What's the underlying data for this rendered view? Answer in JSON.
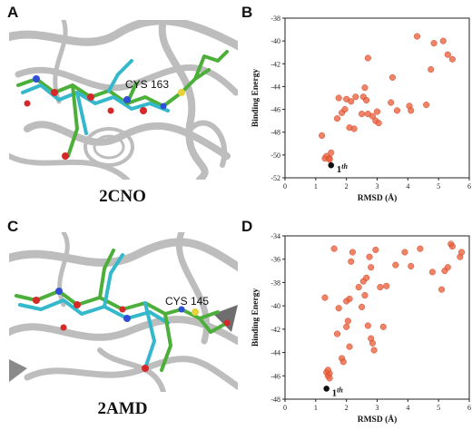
{
  "panels": {
    "a": {
      "letter": "A",
      "caption": "2CNO",
      "residue_label": "CYS 163"
    },
    "b": {
      "letter": "B"
    },
    "c": {
      "letter": "C",
      "caption": "2AMD",
      "residue_label": "CYS 145"
    },
    "d": {
      "letter": "D"
    }
  },
  "colors": {
    "point": "#e8603c",
    "best_point": "#111111",
    "ribbon": "#c8c8c8",
    "ligand_green": "#4caf3a",
    "ligand_cyan": "#35b8cc",
    "oxygen": "#d62828",
    "nitrogen": "#2f4fd6",
    "sulfur": "#e6d23a"
  },
  "chart_data": [
    {
      "type": "scatter",
      "panel": "B",
      "xlabel": "RMSD (Å)",
      "ylabel": "Binding Energy",
      "xlim": [
        0,
        6
      ],
      "ylim": [
        -52,
        -38
      ],
      "xticks": [
        "0",
        "1",
        "2",
        "3",
        "4",
        "5",
        "6"
      ],
      "yticks": [
        "-52",
        "-50",
        "-48",
        "-46",
        "-44",
        "-42",
        "-40",
        "-38"
      ],
      "annotation": {
        "label": "1",
        "sup": "th"
      },
      "best": {
        "x": 1.5,
        "y": -50.9
      },
      "points": [
        [
          1.2,
          -48.3
        ],
        [
          1.3,
          -50.3
        ],
        [
          1.35,
          -50.1
        ],
        [
          1.45,
          -50.3
        ],
        [
          1.5,
          -49.8
        ],
        [
          1.45,
          -50.4
        ],
        [
          1.7,
          -46.8
        ],
        [
          1.75,
          -45.0
        ],
        [
          1.85,
          -46.3
        ],
        [
          1.95,
          -46.0
        ],
        [
          2.0,
          -45.1
        ],
        [
          2.1,
          -47.6
        ],
        [
          2.15,
          -45.3
        ],
        [
          2.25,
          -47.7
        ],
        [
          2.3,
          -44.9
        ],
        [
          2.5,
          -46.4
        ],
        [
          2.55,
          -44.9
        ],
        [
          2.6,
          -44.1
        ],
        [
          2.65,
          -45.2
        ],
        [
          2.7,
          -46.4
        ],
        [
          2.7,
          -41.5
        ],
        [
          2.85,
          -46.6
        ],
        [
          2.95,
          -47.0
        ],
        [
          3.0,
          -46.2
        ],
        [
          3.05,
          -47.2
        ],
        [
          3.45,
          -45.4
        ],
        [
          3.5,
          -43.2
        ],
        [
          3.65,
          -46.1
        ],
        [
          4.05,
          -45.7
        ],
        [
          4.1,
          -46.1
        ],
        [
          4.3,
          -39.6
        ],
        [
          4.6,
          -45.6
        ],
        [
          4.75,
          -42.5
        ],
        [
          4.85,
          -40.2
        ],
        [
          5.15,
          -40.0
        ],
        [
          5.3,
          -41.2
        ],
        [
          5.45,
          -41.6
        ]
      ]
    },
    {
      "type": "scatter",
      "panel": "D",
      "xlabel": "RMSD (Å)",
      "ylabel": "Binding Energy",
      "xlim": [
        0,
        6
      ],
      "ylim": [
        -48,
        -34
      ],
      "xticks": [
        "0",
        "1",
        "2",
        "3",
        "4",
        "5",
        "6"
      ],
      "yticks": [
        "-48",
        "-46",
        "-44",
        "-42",
        "-40",
        "-38",
        "-36",
        "-34"
      ],
      "annotation": {
        "label": "1",
        "sup": "th"
      },
      "best": {
        "x": 1.35,
        "y": -47.1
      },
      "points": [
        [
          1.3,
          -39.3
        ],
        [
          1.35,
          -45.7
        ],
        [
          1.4,
          -46.0
        ],
        [
          1.45,
          -45.8
        ],
        [
          1.45,
          -46.2
        ],
        [
          1.4,
          -45.5
        ],
        [
          1.6,
          -35.1
        ],
        [
          1.7,
          -42.4
        ],
        [
          1.75,
          -40.2
        ],
        [
          1.85,
          -44.5
        ],
        [
          1.9,
          -44.8
        ],
        [
          2.0,
          -39.6
        ],
        [
          2.0,
          -41.8
        ],
        [
          2.05,
          -41.3
        ],
        [
          2.1,
          -39.4
        ],
        [
          2.15,
          -36.2
        ],
        [
          2.1,
          -43.5
        ],
        [
          2.2,
          -35.4
        ],
        [
          2.4,
          -38.4
        ],
        [
          2.5,
          -40.1
        ],
        [
          2.55,
          -37.9
        ],
        [
          2.6,
          -39.1
        ],
        [
          2.65,
          -37.6
        ],
        [
          2.7,
          -41.7
        ],
        [
          2.75,
          -35.8
        ],
        [
          2.8,
          -36.7
        ],
        [
          2.8,
          -42.8
        ],
        [
          2.85,
          -43.2
        ],
        [
          2.9,
          -43.8
        ],
        [
          2.95,
          -35.2
        ],
        [
          3.1,
          -38.4
        ],
        [
          3.2,
          -41.8
        ],
        [
          3.3,
          -38.3
        ],
        [
          3.6,
          -36.5
        ],
        [
          3.9,
          -35.4
        ],
        [
          4.1,
          -36.6
        ],
        [
          4.4,
          -35.1
        ],
        [
          4.8,
          -37.1
        ],
        [
          5.1,
          -38.6
        ],
        [
          5.2,
          -37.0
        ],
        [
          5.3,
          -36.7
        ],
        [
          5.4,
          -34.7
        ],
        [
          5.45,
          -34.9
        ],
        [
          5.7,
          -35.8
        ],
        [
          5.75,
          -35.4
        ]
      ]
    }
  ]
}
